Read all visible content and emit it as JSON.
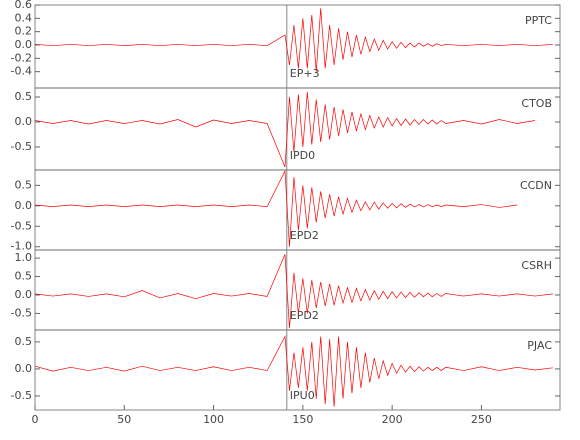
{
  "chart_data": [
    {
      "type": "line",
      "xlim": [
        0,
        294
      ],
      "ylim": [
        -0.645,
        0.6
      ],
      "yticks": [
        0.6,
        0.4,
        0.2,
        {
          "value": 0,
          "label": "0.0"
        },
        -0.2,
        -0.4
      ],
      "x": [
        0,
        10,
        20,
        30,
        40,
        50,
        60,
        70,
        80,
        90,
        100,
        110,
        120,
        130,
        140,
        142.5,
        145,
        147.5,
        150,
        152.5,
        155,
        157.5,
        160,
        162.5,
        165,
        167.5,
        170,
        172.5,
        175,
        177.5,
        180,
        182.5,
        185,
        187.5,
        190,
        192.5,
        195,
        197.5,
        200,
        202.5,
        205,
        207.5,
        210,
        212.5,
        215,
        217.5,
        220,
        222.5,
        225,
        227.5,
        230,
        240,
        250,
        260,
        270,
        280,
        290
      ],
      "series": [
        {
          "name": "PPTC",
          "color": "#ff0000",
          "values": [
            0.01,
            -0.01,
            0.01,
            -0.01,
            0.01,
            -0.01,
            0.01,
            -0.01,
            0.01,
            -0.01,
            0.01,
            -0.01,
            0.01,
            -0.01,
            0.15,
            -0.3,
            0.3,
            -0.35,
            0.4,
            -0.35,
            0.45,
            -0.4,
            0.55,
            -0.35,
            0.3,
            -0.3,
            0.25,
            -0.22,
            0.2,
            -0.18,
            0.15,
            -0.14,
            0.12,
            -0.1,
            0.09,
            -0.08,
            0.07,
            -0.06,
            0.05,
            -0.05,
            0.04,
            -0.04,
            0.03,
            -0.03,
            0.03,
            -0.02,
            0.02,
            -0.02,
            0.02,
            -0.01,
            0.01,
            -0.01,
            0.01,
            -0.01,
            0.01,
            -0.01,
            0.01
          ]
        }
      ],
      "annotation": {
        "text": "EP+3",
        "x": 141
      }
    },
    {
      "type": "line",
      "xlim": [
        0,
        294
      ],
      "ylim": [
        -0.96,
        0.68
      ],
      "yticks": [
        0.5,
        {
          "value": 0,
          "label": "0.0"
        },
        -0.5
      ],
      "x": [
        0,
        10,
        20,
        30,
        40,
        50,
        60,
        70,
        80,
        90,
        100,
        110,
        120,
        130,
        140,
        142.5,
        145,
        147.5,
        150,
        152.5,
        155,
        157.5,
        160,
        162.5,
        165,
        167.5,
        170,
        172.5,
        175,
        177.5,
        180,
        182.5,
        185,
        187.5,
        190,
        192.5,
        195,
        197.5,
        200,
        202.5,
        205,
        207.5,
        210,
        212.5,
        215,
        217.5,
        220,
        222.5,
        225,
        227.5,
        230,
        240,
        250,
        260,
        270,
        280,
        290
      ],
      "series": [
        {
          "name": "CTOB",
          "color": "#ff0000",
          "values": [
            0.03,
            -0.03,
            0.03,
            -0.04,
            0.03,
            -0.03,
            0.03,
            -0.04,
            0.05,
            -0.1,
            0.04,
            -0.03,
            0.03,
            -0.03,
            -0.9,
            0.5,
            -0.6,
            0.55,
            -0.5,
            0.6,
            -0.45,
            0.45,
            -0.4,
            0.35,
            -0.35,
            0.3,
            -0.28,
            0.25,
            -0.22,
            0.2,
            -0.18,
            0.16,
            -0.15,
            0.13,
            -0.12,
            0.1,
            -0.1,
            0.09,
            -0.08,
            0.07,
            -0.07,
            0.06,
            -0.06,
            0.05,
            -0.05,
            0.05,
            -0.04,
            0.04,
            -0.04,
            0.03,
            -0.03,
            0.03,
            -0.04,
            0.05,
            -0.03,
            0.03,
            null
          ]
        }
      ],
      "annotation": {
        "text": "IPD0",
        "x": 141
      }
    },
    {
      "type": "line",
      "xlim": [
        0,
        294
      ],
      "ylim": [
        -1.08,
        0.875
      ],
      "yticks": [
        0.5,
        {
          "value": 0,
          "label": "0.0"
        },
        -0.5,
        {
          "value": -1,
          "label": "-1.0"
        }
      ],
      "x": [
        0,
        10,
        20,
        30,
        40,
        50,
        60,
        70,
        80,
        90,
        100,
        110,
        120,
        130,
        140,
        142.5,
        145,
        147.5,
        150,
        152.5,
        155,
        157.5,
        160,
        162.5,
        165,
        167.5,
        170,
        172.5,
        175,
        177.5,
        180,
        182.5,
        185,
        187.5,
        190,
        192.5,
        195,
        197.5,
        200,
        202.5,
        205,
        207.5,
        210,
        212.5,
        215,
        217.5,
        220,
        222.5,
        225,
        227.5,
        230,
        240,
        250,
        260,
        270,
        280,
        290
      ],
      "series": [
        {
          "name": "CCDN",
          "color": "#ff0000",
          "values": [
            0.02,
            -0.02,
            0.02,
            -0.02,
            0.02,
            -0.02,
            0.02,
            -0.02,
            0.02,
            -0.02,
            0.02,
            -0.02,
            0.02,
            -0.02,
            0.85,
            -1.0,
            0.7,
            -0.6,
            0.5,
            -0.55,
            0.45,
            -0.4,
            0.35,
            -0.3,
            0.28,
            -0.25,
            0.22,
            -0.2,
            0.18,
            -0.16,
            0.14,
            -0.12,
            0.1,
            -0.1,
            0.09,
            -0.08,
            0.07,
            -0.06,
            0.06,
            -0.05,
            0.05,
            -0.04,
            0.04,
            -0.03,
            0.03,
            -0.03,
            0.03,
            -0.02,
            0.02,
            -0.02,
            0.02,
            -0.02,
            0.03,
            -0.04,
            0.02,
            null,
            null
          ]
        }
      ],
      "annotation": {
        "text": "EPD2",
        "x": 141
      }
    },
    {
      "type": "line",
      "xlim": [
        0,
        294
      ],
      "ylim": [
        -0.95,
        1.22
      ],
      "yticks": [
        {
          "value": 1,
          "label": "1.0"
        },
        0.5,
        {
          "value": 0,
          "label": "0.0"
        },
        -0.5
      ],
      "x": [
        0,
        10,
        20,
        30,
        40,
        50,
        60,
        70,
        80,
        90,
        100,
        110,
        120,
        130,
        140,
        142.5,
        145,
        147.5,
        150,
        152.5,
        155,
        157.5,
        160,
        162.5,
        165,
        167.5,
        170,
        172.5,
        175,
        177.5,
        180,
        182.5,
        185,
        187.5,
        190,
        192.5,
        195,
        197.5,
        200,
        202.5,
        205,
        207.5,
        210,
        212.5,
        215,
        217.5,
        220,
        222.5,
        225,
        227.5,
        230,
        240,
        250,
        260,
        270,
        280,
        290
      ],
      "series": [
        {
          "name": "CSRH",
          "color": "#ff0000",
          "values": [
            0.03,
            -0.03,
            0.03,
            -0.04,
            0.03,
            -0.05,
            0.12,
            -0.08,
            0.04,
            -0.1,
            0.04,
            -0.03,
            0.04,
            -0.04,
            1.1,
            -0.9,
            0.6,
            -0.5,
            0.45,
            -0.5,
            0.4,
            -0.35,
            0.35,
            -0.3,
            0.3,
            -0.28,
            0.25,
            -0.22,
            0.2,
            -0.2,
            0.18,
            -0.16,
            0.15,
            -0.14,
            0.12,
            -0.12,
            0.1,
            -0.1,
            0.09,
            -0.08,
            0.08,
            -0.07,
            0.07,
            -0.06,
            0.06,
            -0.05,
            0.05,
            -0.05,
            0.04,
            -0.04,
            0.04,
            -0.03,
            0.03,
            -0.03,
            0.03,
            -0.03,
            0.03
          ]
        }
      ],
      "annotation": {
        "text": "EPD2",
        "x": 141
      }
    },
    {
      "type": "line",
      "xlim": [
        0,
        294
      ],
      "ylim": [
        -0.76,
        0.72
      ],
      "yticks": [
        0.5,
        {
          "value": 0,
          "label": "0.0"
        },
        -0.5
      ],
      "xticks": [
        0,
        50,
        100,
        150,
        200,
        250
      ],
      "x": [
        0,
        10,
        20,
        30,
        40,
        50,
        60,
        70,
        80,
        90,
        100,
        110,
        120,
        130,
        140,
        142.5,
        145,
        147.5,
        150,
        152.5,
        155,
        157.5,
        160,
        162.5,
        165,
        167.5,
        170,
        172.5,
        175,
        177.5,
        180,
        182.5,
        185,
        187.5,
        190,
        192.5,
        195,
        197.5,
        200,
        202.5,
        205,
        207.5,
        210,
        212.5,
        215,
        217.5,
        220,
        222.5,
        225,
        227.5,
        230,
        240,
        250,
        260,
        270,
        280,
        290
      ],
      "series": [
        {
          "name": "PJAC",
          "color": "#ff0000",
          "values": [
            0.05,
            -0.04,
            0.03,
            -0.03,
            0.03,
            -0.04,
            0.05,
            -0.03,
            0.03,
            -0.03,
            0.04,
            -0.03,
            0.03,
            -0.03,
            0.6,
            -0.4,
            0.3,
            -0.35,
            0.4,
            -0.4,
            0.5,
            -0.55,
            0.6,
            -0.65,
            0.55,
            -0.7,
            0.6,
            -0.55,
            0.5,
            -0.45,
            0.4,
            -0.35,
            0.3,
            -0.25,
            0.2,
            -0.18,
            0.15,
            -0.12,
            0.1,
            -0.08,
            0.07,
            -0.06,
            0.05,
            -0.05,
            0.04,
            -0.04,
            0.03,
            -0.03,
            0.03,
            -0.03,
            0.03,
            -0.03,
            0.04,
            -0.03,
            0.03,
            -0.02,
            0.02
          ]
        }
      ],
      "annotation": {
        "text": "IPU0",
        "x": 141
      }
    }
  ]
}
